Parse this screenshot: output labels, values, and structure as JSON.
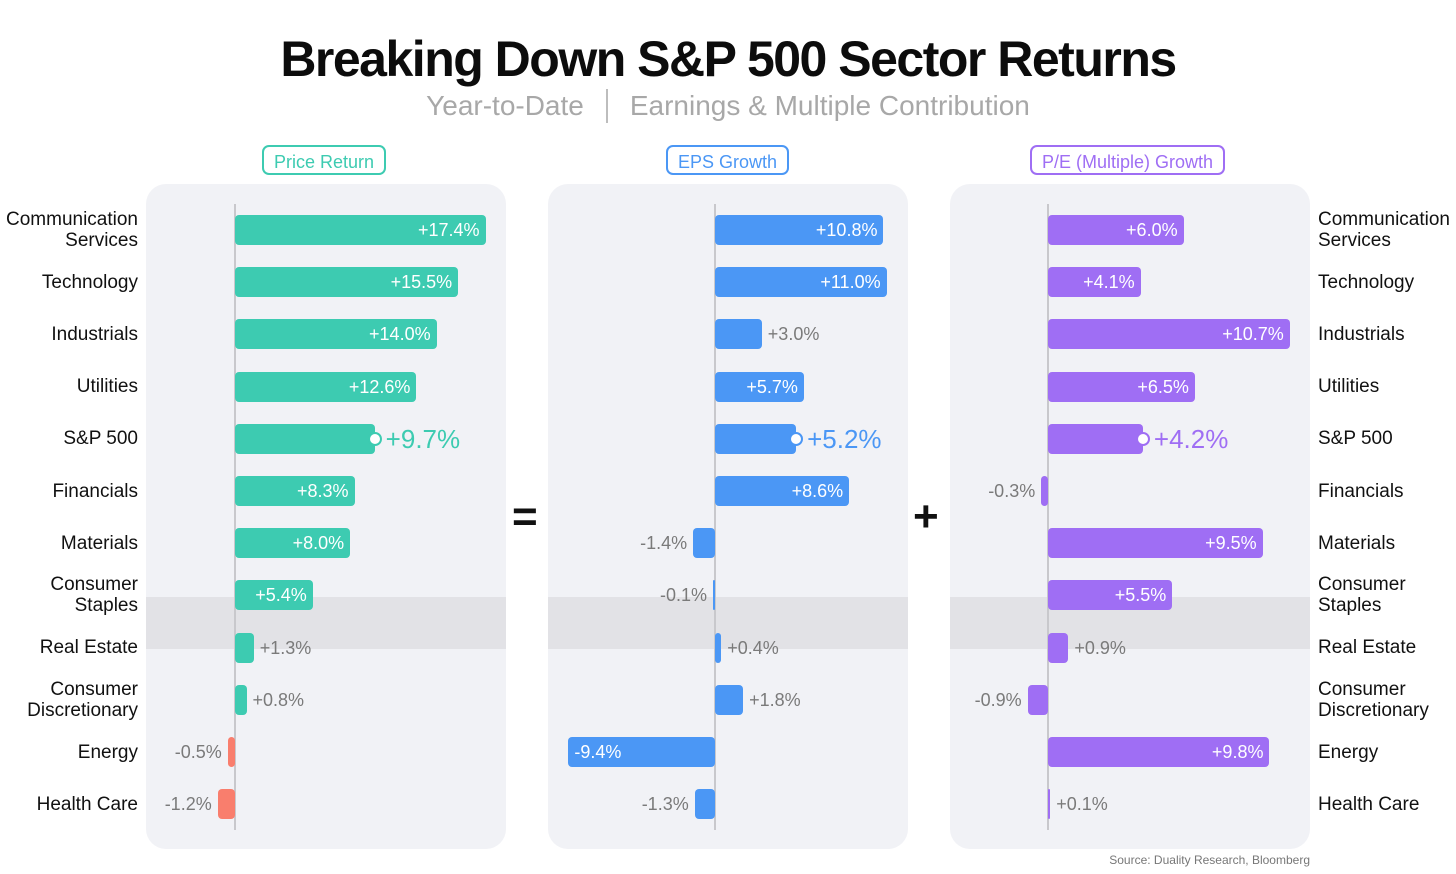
{
  "title": "Breaking Down S&P 500 Sector Returns",
  "subtitle": {
    "left": "Year-to-Date",
    "right": "Earnings & Multiple Contribution"
  },
  "operators": {
    "equals": "=",
    "plus": "+"
  },
  "source": "Source: Duality Research, Bloomberg",
  "colors": {
    "price": "#3dcbb1",
    "price_negative": "#f97e6d",
    "eps": "#4b97f5",
    "pe": "#9f6ef4",
    "highlight_row": "#e2e2e6",
    "panel": "#f1f2f6"
  },
  "chart_data": [
    {
      "type": "bar",
      "orientation": "horizontal",
      "title": "Price Return",
      "categories": [
        "Communication Services",
        "Technology",
        "Industrials",
        "Utilities",
        "S&P 500",
        "Financials",
        "Materials",
        "Consumer Staples",
        "Real Estate",
        "Consumer Discretionary",
        "Energy",
        "Health Care"
      ],
      "values": [
        17.4,
        15.5,
        14.0,
        12.6,
        9.7,
        8.3,
        8.0,
        5.4,
        1.3,
        0.8,
        -0.5,
        -1.2
      ],
      "labels": [
        "+17.4%",
        "+15.5%",
        "+14.0%",
        "+12.6%",
        "+9.7%",
        "+8.3%",
        "+8.0%",
        "+5.4%",
        "+1.3%",
        "+0.8%",
        "-0.5%",
        "-1.2%"
      ],
      "highlight": "S&P 500",
      "xlim": [
        -1.2,
        17.4
      ]
    },
    {
      "type": "bar",
      "orientation": "horizontal",
      "title": "EPS Growth",
      "categories": [
        "Communication Services",
        "Technology",
        "Industrials",
        "Utilities",
        "S&P 500",
        "Financials",
        "Materials",
        "Consumer Staples",
        "Real Estate",
        "Consumer Discretionary",
        "Energy",
        "Health Care"
      ],
      "values": [
        10.8,
        11.0,
        3.0,
        5.7,
        5.2,
        8.6,
        -1.4,
        -0.1,
        0.4,
        1.8,
        -9.4,
        -1.3
      ],
      "labels": [
        "+10.8%",
        "+11.0%",
        "+3.0%",
        "+5.7%",
        "+5.2%",
        "+8.6%",
        "-1.4%",
        "-0.1%",
        "+0.4%",
        "+1.8%",
        "-9.4%",
        "-1.3%"
      ],
      "highlight": "S&P 500",
      "xlim": [
        -9.4,
        11.0
      ]
    },
    {
      "type": "bar",
      "orientation": "horizontal",
      "title": "P/E (Multiple) Growth",
      "categories": [
        "Communication Services",
        "Technology",
        "Industrials",
        "Utilities",
        "S&P 500",
        "Financials",
        "Materials",
        "Consumer Staples",
        "Real Estate",
        "Consumer Discretionary",
        "Energy",
        "Health Care"
      ],
      "values": [
        6.0,
        4.1,
        10.7,
        6.5,
        4.2,
        -0.3,
        9.5,
        5.5,
        0.9,
        -0.9,
        9.8,
        0.1
      ],
      "labels": [
        "+6.0%",
        "+4.1%",
        "+10.7%",
        "+6.5%",
        "+4.2%",
        "-0.3%",
        "+9.5%",
        "+5.5%",
        "+0.9%",
        "-0.9%",
        "+9.8%",
        "+0.1%"
      ],
      "highlight": "S&P 500",
      "xlim": [
        -0.9,
        10.7
      ]
    }
  ]
}
